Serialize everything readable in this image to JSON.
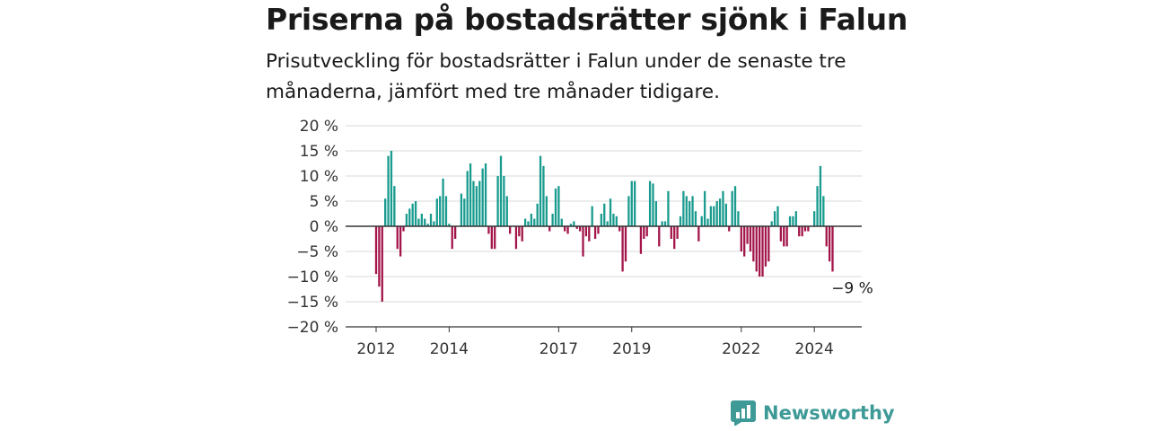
{
  "title": "Priserna på bostadsrätter sjönk i Falun",
  "subtitle": "Prisutveckling för bostadsrätter i Falun under de senaste tre månaderna, jämfört med tre månader tidigare.",
  "brand": "Newsworthy",
  "colors": {
    "positive": "#1a9b8f",
    "negative": "#a3154a",
    "grid": "#d9d9d9",
    "zero": "#333333",
    "brand": "#3e9a97"
  },
  "chart_data": {
    "type": "bar",
    "title": "Priserna på bostadsrätter sjönk i Falun",
    "ylim": [
      -20,
      20
    ],
    "yticks": [
      20,
      15,
      10,
      5,
      0,
      -5,
      -10,
      -15,
      -20
    ],
    "ytick_labels": [
      "20 %",
      "15 %",
      "10 %",
      "5 %",
      "0 %",
      "−5 %",
      "−10 %",
      "−15 %",
      "−20 %"
    ],
    "xticks": [
      2012,
      2014,
      2017,
      2019,
      2022,
      2024
    ],
    "x_start": "2012-01",
    "annotation": "−9 %",
    "grid": true,
    "values": [
      -9.5,
      -12,
      -15,
      5.5,
      14,
      15,
      8,
      -4.5,
      -6,
      -1,
      2.5,
      3.5,
      4.5,
      5,
      1.5,
      2.5,
      1.5,
      0.5,
      2.5,
      1,
      5.5,
      6,
      9.5,
      6,
      0.5,
      -4.5,
      -2.5,
      0,
      6.5,
      5.5,
      11,
      12.5,
      9,
      8,
      9,
      11.5,
      12.5,
      -1.5,
      -4.5,
      -4.5,
      10,
      14,
      10,
      6,
      -1.5,
      0,
      -4.5,
      -2,
      -3,
      1.5,
      1,
      2.5,
      1.5,
      4.5,
      14,
      12,
      6,
      -1,
      2.5,
      7.5,
      8,
      1.5,
      -1,
      -1.5,
      0.5,
      1,
      -0.5,
      -1,
      -6,
      -2,
      -3,
      4,
      -2.5,
      -1.5,
      2.5,
      4.5,
      1,
      5.5,
      2.5,
      2,
      -1,
      -9,
      -7,
      6,
      9,
      9,
      0,
      -5.5,
      -2.5,
      -2,
      9,
      8.5,
      5,
      -4,
      1,
      1,
      7,
      -2.5,
      -4.5,
      -2.5,
      2,
      7,
      6,
      5,
      6,
      3,
      -3,
      2,
      7,
      1.5,
      4,
      4,
      5,
      5.5,
      7,
      4.5,
      -1,
      7,
      8,
      3,
      -5,
      -6,
      -3.5,
      -5,
      -7,
      -9,
      -10,
      -10,
      -8,
      -7,
      1,
      3,
      4,
      -3,
      -4,
      -4,
      2,
      2,
      3,
      -2,
      -2,
      -1,
      -1,
      0,
      3,
      8,
      12,
      6,
      -4,
      -7,
      -9
    ]
  }
}
